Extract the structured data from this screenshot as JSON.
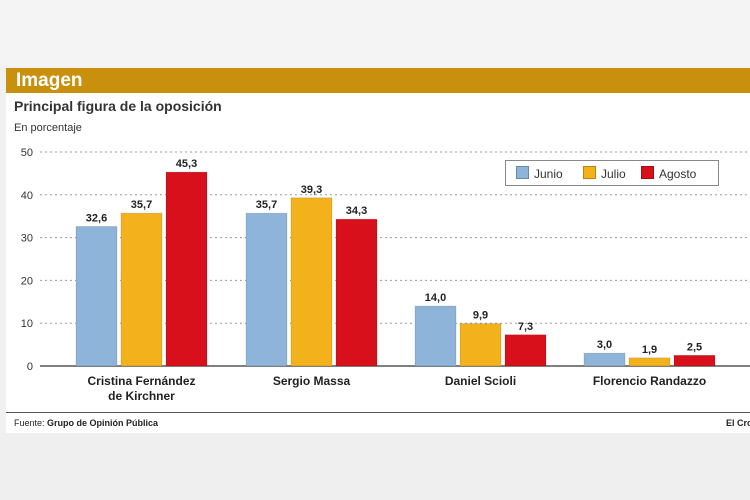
{
  "header": {
    "title": "Imagen"
  },
  "source": {
    "label": "Fuente:",
    "name": "Grupo de Opinión Pública"
  },
  "credit": "El Cro",
  "colors": {
    "Junio": "#8fb4d9",
    "Julio": "#f3b21b",
    "Agosto": "#d8101c"
  },
  "chart_data": {
    "type": "bar",
    "title": "Principal figura de la oposición",
    "ylabel": "En porcentaje",
    "ylim": [
      0,
      50
    ],
    "yticks": [
      0,
      10,
      20,
      30,
      40,
      50
    ],
    "grid": true,
    "legend_position": "top-right",
    "categories": [
      [
        "Cristina Fernández",
        "de Kirchner"
      ],
      [
        "Sergio Massa"
      ],
      [
        "Daniel Scioli"
      ],
      [
        "Florencio Randazzo"
      ]
    ],
    "series": [
      {
        "name": "Junio",
        "values": [
          32.6,
          35.7,
          14.0,
          3.0
        ],
        "labels": [
          "32,6",
          "35,7",
          "14,0",
          "3,0"
        ]
      },
      {
        "name": "Julio",
        "values": [
          35.7,
          39.3,
          9.9,
          1.9
        ],
        "labels": [
          "35,7",
          "39,3",
          "9,9",
          "1,9"
        ]
      },
      {
        "name": "Agosto",
        "values": [
          45.3,
          34.3,
          7.3,
          2.5
        ],
        "labels": [
          "45,3",
          "34,3",
          "7,3",
          "2,5"
        ]
      }
    ]
  }
}
